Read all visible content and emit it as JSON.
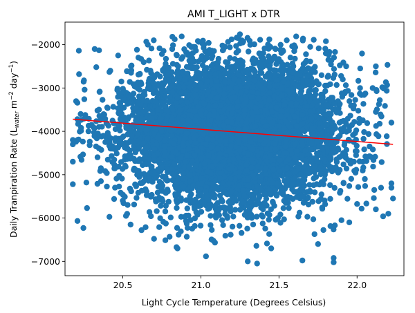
{
  "chart_data": {
    "type": "scatter",
    "title": "AMI T_LIGHT x DTR",
    "xlabel": "Light Cycle Temperature (Degrees Celsius)",
    "ylabel": {
      "prefix": "Daily Tranpiration Rate (L",
      "sub": "water",
      "mid": " m",
      "sup1": "−2",
      "mid2": " day",
      "sup2": "−1",
      "suffix": ")"
    },
    "xlim": [
      20.13,
      22.3
    ],
    "ylim": [
      -7330,
      -1480
    ],
    "xticks": [
      20.5,
      21.0,
      21.5,
      22.0
    ],
    "xtick_labels": [
      "20.5",
      "21.0",
      "21.5",
      "22.0"
    ],
    "yticks": [
      -7000,
      -6000,
      -5000,
      -4000,
      -3000,
      -2000
    ],
    "ytick_labels": [
      "−7000",
      "−6000",
      "−5000",
      "−4000",
      "−3000",
      "−2000"
    ],
    "grid": false,
    "scatter_color": "#1f77b4",
    "cloud": {
      "x_mean": 21.2,
      "x_sd": 0.33,
      "y_mean": -4000,
      "y_sd": 800,
      "n": 7000
    },
    "outliers": [
      [
        20.18,
        -4200
      ],
      [
        20.18,
        -4300
      ],
      [
        20.18,
        -4700
      ],
      [
        20.18,
        -5220
      ],
      [
        20.22,
        -2680
      ],
      [
        20.23,
        -3600
      ],
      [
        20.32,
        -2100
      ],
      [
        20.33,
        -2520
      ],
      [
        20.34,
        -4050
      ],
      [
        20.36,
        -4850
      ],
      [
        20.36,
        -5150
      ],
      [
        20.42,
        -2600
      ],
      [
        20.45,
        -5300
      ],
      [
        20.47,
        -2250
      ],
      [
        20.52,
        -5950
      ],
      [
        20.55,
        -6150
      ],
      [
        20.6,
        -2300
      ],
      [
        20.62,
        -6280
      ],
      [
        20.66,
        -2000
      ],
      [
        20.7,
        -6480
      ],
      [
        21.25,
        -1760
      ],
      [
        21.3,
        -7000
      ],
      [
        21.36,
        -7050
      ],
      [
        21.45,
        -6700
      ],
      [
        21.55,
        -1900
      ],
      [
        21.65,
        -6980
      ],
      [
        21.85,
        -6920
      ],
      [
        21.85,
        -7020
      ],
      [
        21.93,
        -2500
      ],
      [
        21.95,
        -6100
      ],
      [
        22.02,
        -2550
      ],
      [
        22.12,
        -2500
      ],
      [
        22.12,
        -5800
      ],
      [
        22.2,
        -5900
      ],
      [
        22.22,
        -5200
      ],
      [
        22.22,
        -5300
      ],
      [
        22.23,
        -5550
      ],
      [
        22.22,
        -3800
      ],
      [
        22.12,
        -3550
      ],
      [
        22.1,
        -3000
      ],
      [
        21.98,
        -3400
      ],
      [
        22.08,
        -4350
      ],
      [
        21.98,
        -4700
      ],
      [
        22.05,
        -5100
      ],
      [
        20.4,
        -3450
      ],
      [
        20.3,
        -3850
      ],
      [
        20.28,
        -4000
      ],
      [
        20.5,
        -5600
      ],
      [
        21.9,
        -6050
      ],
      [
        21.75,
        -6600
      ],
      [
        20.85,
        -6700
      ],
      [
        21.05,
        -1960
      ],
      [
        20.95,
        -2050
      ],
      [
        21.7,
        -2050
      ],
      [
        21.8,
        -2200
      ]
    ],
    "regression": {
      "x": [
        20.18,
        22.23
      ],
      "y": [
        -3720,
        -4300
      ],
      "color": "#ff0000"
    }
  }
}
